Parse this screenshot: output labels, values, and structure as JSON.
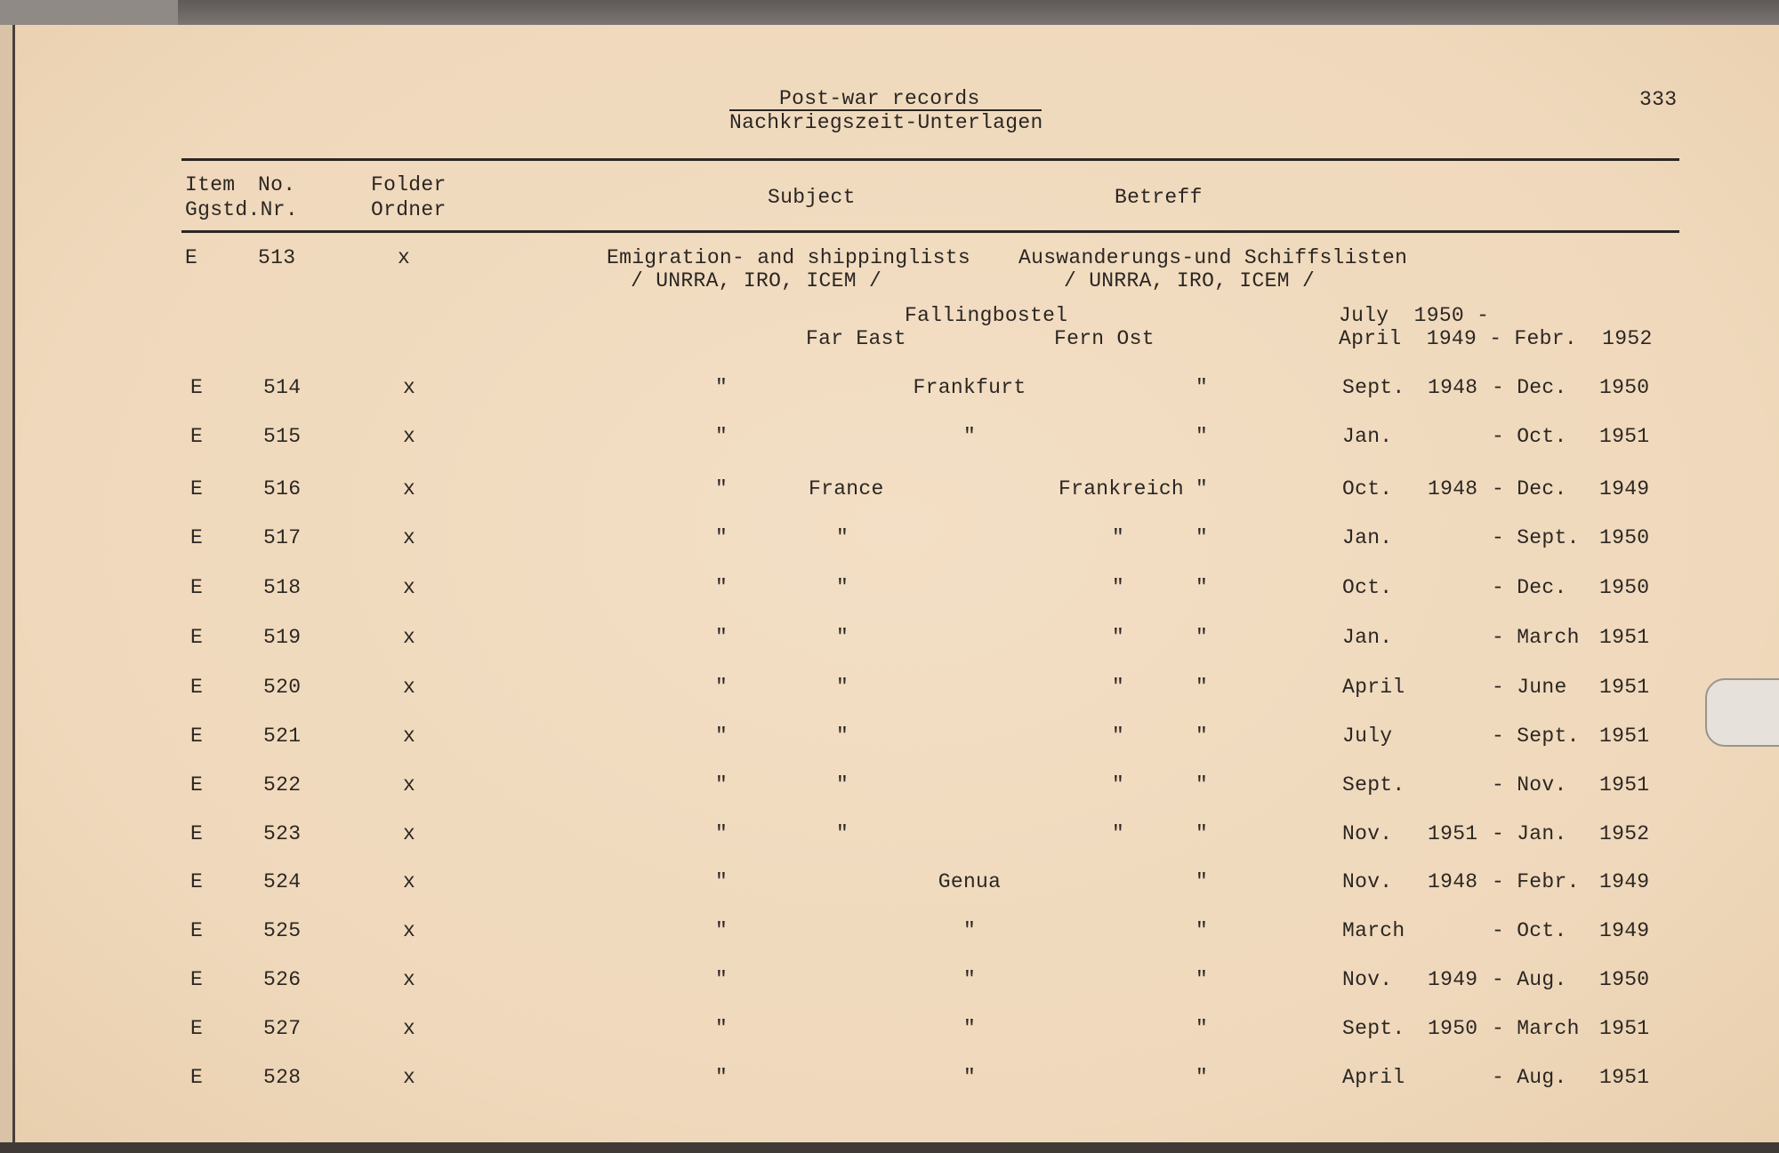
{
  "header": {
    "title_en": "Post-war records",
    "title_de": "Nachkriegszeit-Unterlagen",
    "page_number": "333"
  },
  "columns": {
    "item": "Item",
    "no": "No.",
    "item_no_de": "Ggstd.Nr.",
    "folder": "Folder",
    "folder_de": "Ordner",
    "subject": "Subject",
    "betreff": "Betreff"
  },
  "first_entry": {
    "item": "E",
    "no": "513",
    "folder": "x",
    "subject": "Emigration- and shippinglists",
    "subject_sub": "/ UNRRA, IRO, ICEM /",
    "betreff": "Auswanderungs-und Schiffslisten",
    "betreff_sub": "/ UNRRA, IRO, ICEM /",
    "sub_place": "Fallingbostel",
    "sub_place_date": "July  1950 -",
    "region": "Far East",
    "region_de": "Fern Ost",
    "region_date": "April  1949 - Febr.  1952"
  },
  "rows": [
    {
      "item": "E",
      "no": "514",
      "folder": "x",
      "subj": "\"",
      "place": "Frankfurt",
      "place_de": "",
      "betr": "\"",
      "from_m": "Sept.",
      "from_y": "1948",
      "to_m": "- Dec.",
      "to_y": "1950"
    },
    {
      "item": "E",
      "no": "515",
      "folder": "x",
      "subj": "\"",
      "place": "\"",
      "place_de": "",
      "betr": "\"",
      "from_m": "Jan.",
      "from_y": "",
      "to_m": "- Oct.",
      "to_y": "1951"
    },
    {
      "item": "E",
      "no": "516",
      "folder": "x",
      "subj": "\"",
      "place": "France",
      "place_de": "Frankreich",
      "betr": "\"",
      "from_m": "Oct.",
      "from_y": "1948",
      "to_m": "- Dec.",
      "to_y": "1949"
    },
    {
      "item": "E",
      "no": "517",
      "folder": "x",
      "subj": "\"",
      "place": "\"",
      "place_de": "\"",
      "betr": "\"",
      "from_m": "Jan.",
      "from_y": "",
      "to_m": "- Sept.",
      "to_y": "1950"
    },
    {
      "item": "E",
      "no": "518",
      "folder": "x",
      "subj": "\"",
      "place": "\"",
      "place_de": "\"",
      "betr": "\"",
      "from_m": "Oct.",
      "from_y": "",
      "to_m": "- Dec.",
      "to_y": "1950"
    },
    {
      "item": "E",
      "no": "519",
      "folder": "x",
      "subj": "\"",
      "place": "\"",
      "place_de": "\"",
      "betr": "\"",
      "from_m": "Jan.",
      "from_y": "",
      "to_m": "- March",
      "to_y": "1951"
    },
    {
      "item": "E",
      "no": "520",
      "folder": "x",
      "subj": "\"",
      "place": "\"",
      "place_de": "\"",
      "betr": "\"",
      "from_m": "April",
      "from_y": "",
      "to_m": "- June",
      "to_y": "1951"
    },
    {
      "item": "E",
      "no": "521",
      "folder": "x",
      "subj": "\"",
      "place": "\"",
      "place_de": "\"",
      "betr": "\"",
      "from_m": "July",
      "from_y": "",
      "to_m": "- Sept.",
      "to_y": "1951"
    },
    {
      "item": "E",
      "no": "522",
      "folder": "x",
      "subj": "\"",
      "place": "\"",
      "place_de": "\"",
      "betr": "\"",
      "from_m": "Sept.",
      "from_y": "",
      "to_m": "- Nov.",
      "to_y": "1951"
    },
    {
      "item": "E",
      "no": "523",
      "folder": "x",
      "subj": "\"",
      "place": "\"",
      "place_de": "\"",
      "betr": "\"",
      "from_m": "Nov.",
      "from_y": "1951",
      "to_m": "- Jan.",
      "to_y": "1952"
    },
    {
      "item": "E",
      "no": "524",
      "folder": "x",
      "subj": "\"",
      "place": "Genua",
      "place_de": "",
      "betr": "\"",
      "from_m": "Nov.",
      "from_y": "1948",
      "to_m": "- Febr.",
      "to_y": "1949"
    },
    {
      "item": "E",
      "no": "525",
      "folder": "x",
      "subj": "\"",
      "place": "\"",
      "place_de": "",
      "betr": "\"",
      "from_m": "March",
      "from_y": "",
      "to_m": "- Oct.",
      "to_y": "1949"
    },
    {
      "item": "E",
      "no": "526",
      "folder": "x",
      "subj": "\"",
      "place": "\"",
      "place_de": "",
      "betr": "\"",
      "from_m": "Nov.",
      "from_y": "1949",
      "to_m": "- Aug.",
      "to_y": "1950"
    },
    {
      "item": "E",
      "no": "527",
      "folder": "x",
      "subj": "\"",
      "place": "\"",
      "place_de": "",
      "betr": "\"",
      "from_m": "Sept.",
      "from_y": "1950",
      "to_m": "- March",
      "to_y": "1951"
    },
    {
      "item": "E",
      "no": "528",
      "folder": "x",
      "subj": "\"",
      "place": "\"",
      "place_de": "",
      "betr": "\"",
      "from_m": "April",
      "from_y": "",
      "to_m": "- Aug.",
      "to_y": "1951"
    }
  ]
}
